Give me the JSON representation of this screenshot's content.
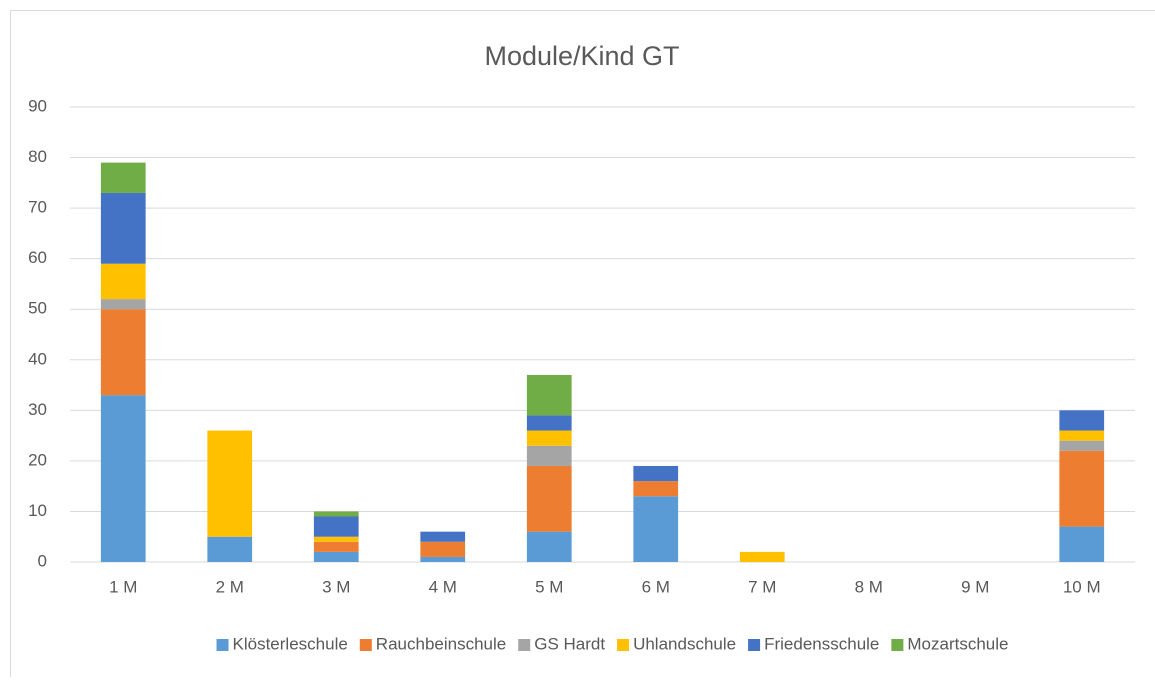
{
  "chart_data": {
    "type": "stacked_bar",
    "title": "Module/Kind GT",
    "categories": [
      "1 M",
      "2 M",
      "3 M",
      "4 M",
      "5 M",
      "6 M",
      "7 M",
      "8 M",
      "9 M",
      "10 M"
    ],
    "series": [
      {
        "name": "Klösterleschule",
        "color": "#5b9bd5",
        "values": [
          33,
          5,
          2,
          1,
          6,
          13,
          0,
          0,
          0,
          7
        ]
      },
      {
        "name": "Rauchbeinschule",
        "color": "#ed7d31",
        "values": [
          17,
          0,
          2,
          3,
          13,
          3,
          0,
          0,
          0,
          15
        ]
      },
      {
        "name": "GS Hardt",
        "color": "#a5a5a5",
        "values": [
          2,
          0,
          0,
          0,
          4,
          0,
          0,
          0,
          0,
          2
        ]
      },
      {
        "name": "Uhlandschule",
        "color": "#ffc000",
        "values": [
          7,
          21,
          1,
          0,
          3,
          0,
          2,
          0,
          0,
          2
        ]
      },
      {
        "name": "Friedensschule",
        "color": "#4472c4",
        "values": [
          14,
          0,
          4,
          2,
          3,
          3,
          0,
          0,
          0,
          4
        ]
      },
      {
        "name": "Mozartschule",
        "color": "#70ad47",
        "values": [
          6,
          0,
          1,
          0,
          8,
          0,
          0,
          0,
          0,
          0
        ]
      }
    ],
    "ylim": [
      0,
      90
    ],
    "yticks": [
      0,
      10,
      20,
      30,
      40,
      50,
      60,
      70,
      80,
      90
    ],
    "grid": true,
    "legend": "bottom"
  }
}
